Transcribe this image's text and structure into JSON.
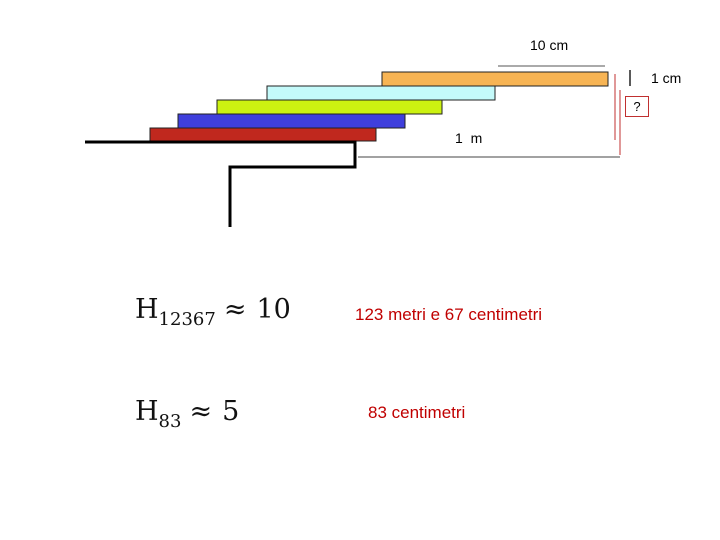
{
  "diagram": {
    "labels": {
      "ten_cm": "10 cm",
      "one_cm": "1 cm",
      "unknown": "?",
      "one_m": "1 m"
    },
    "colors": {
      "block_orange": "#f7b454",
      "block_cyan": "#c4fafa",
      "block_lime": "#ccf211",
      "block_blue": "#3f3fdc",
      "block_red": "#c0281e",
      "step_line": "#000000",
      "guide_line": "#c03030",
      "text_red": "#c00000"
    }
  },
  "formulas": [
    {
      "symbol": "H",
      "subscript": "12367",
      "relation": "≈",
      "value": "10",
      "description": "123 metri e 67 centimetri"
    },
    {
      "symbol": "H",
      "subscript": "83",
      "relation": "≈",
      "value": "5",
      "description": "83 centimetri"
    }
  ]
}
